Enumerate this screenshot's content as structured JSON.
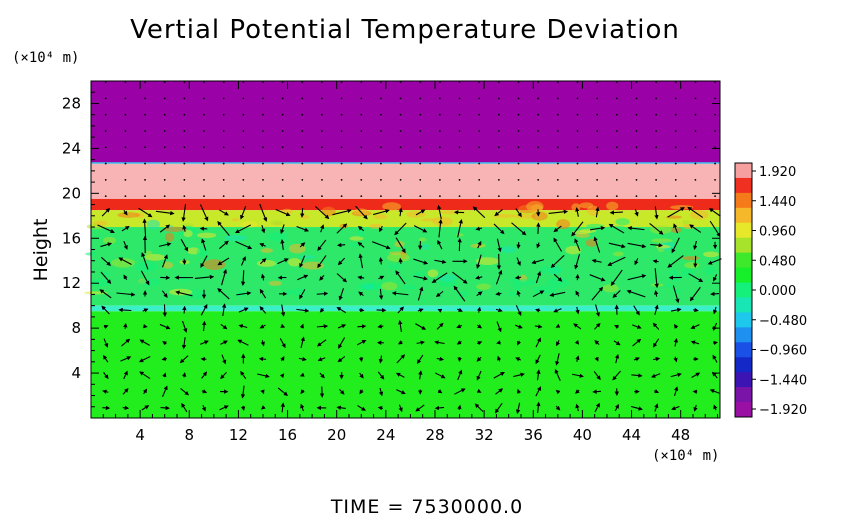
{
  "chart_data": {
    "type": "heatmap",
    "title": "Vertial Potential Temperature Deviation",
    "ylabel": "Height",
    "x_unit": "(×10⁴ m)",
    "y_unit": "(×10⁴ m)",
    "time_label": "TIME  =  7530000.0",
    "xlim": [
      0,
      51.2
    ],
    "ylim": [
      0,
      30
    ],
    "xticks": [
      4,
      8,
      12,
      16,
      20,
      24,
      28,
      32,
      36,
      40,
      44,
      48
    ],
    "xtick_labels": [
      "4",
      "8",
      "12",
      "16",
      "20",
      "24",
      "28",
      "32",
      "36",
      "40",
      "44",
      "48"
    ],
    "yticks": [
      4,
      8,
      12,
      16,
      20,
      24,
      28
    ],
    "ytick_labels": [
      "4",
      "8",
      "12",
      "16",
      "20",
      "24",
      "28"
    ],
    "colorbar": {
      "levels": [
        1.92,
        1.44,
        0.96,
        0.48,
        0.0,
        -0.48,
        -0.96,
        -1.44,
        -1.92
      ],
      "labels": [
        "1.920",
        "1.440",
        "0.960",
        "0.480",
        "0.000",
        "−0.480",
        "−0.960",
        "−1.440",
        "−1.920"
      ],
      "colors_top_to_bottom": [
        "#f7a0a0",
        "#f03020",
        "#f57a1a",
        "#f5b82a",
        "#e8e82a",
        "#a6e32a",
        "#3ee82a",
        "#15f02a",
        "#14f07a",
        "#18e6b4",
        "#1ec8ec",
        "#1e90f0",
        "#1a50e6",
        "#1428c8",
        "#3c14b4",
        "#7a14a8",
        "#9a10a4"
      ]
    },
    "layers": [
      {
        "y_from": 22.7,
        "y_to": 30,
        "value": -1.92,
        "color": "#9a02a8"
      },
      {
        "y_from": 19.5,
        "y_to": 22.7,
        "value": 1.92,
        "color": "#f8b4b4"
      },
      {
        "y_from": 18.5,
        "y_to": 19.5,
        "value": 1.44,
        "color": "#ee2a1a"
      },
      {
        "y_from": 17.0,
        "y_to": 18.5,
        "value": 0.6,
        "color": "#c8e82a"
      },
      {
        "y_from": 10.0,
        "y_to": 17.0,
        "value": 0.1,
        "color": "#2ee86a"
      },
      {
        "y_from": 9.5,
        "y_to": 10.0,
        "value": -0.4,
        "color": "#3af0c8"
      },
      {
        "y_from": 0,
        "y_to": 9.5,
        "value": 0.05,
        "color": "#22ee1e"
      }
    ]
  }
}
